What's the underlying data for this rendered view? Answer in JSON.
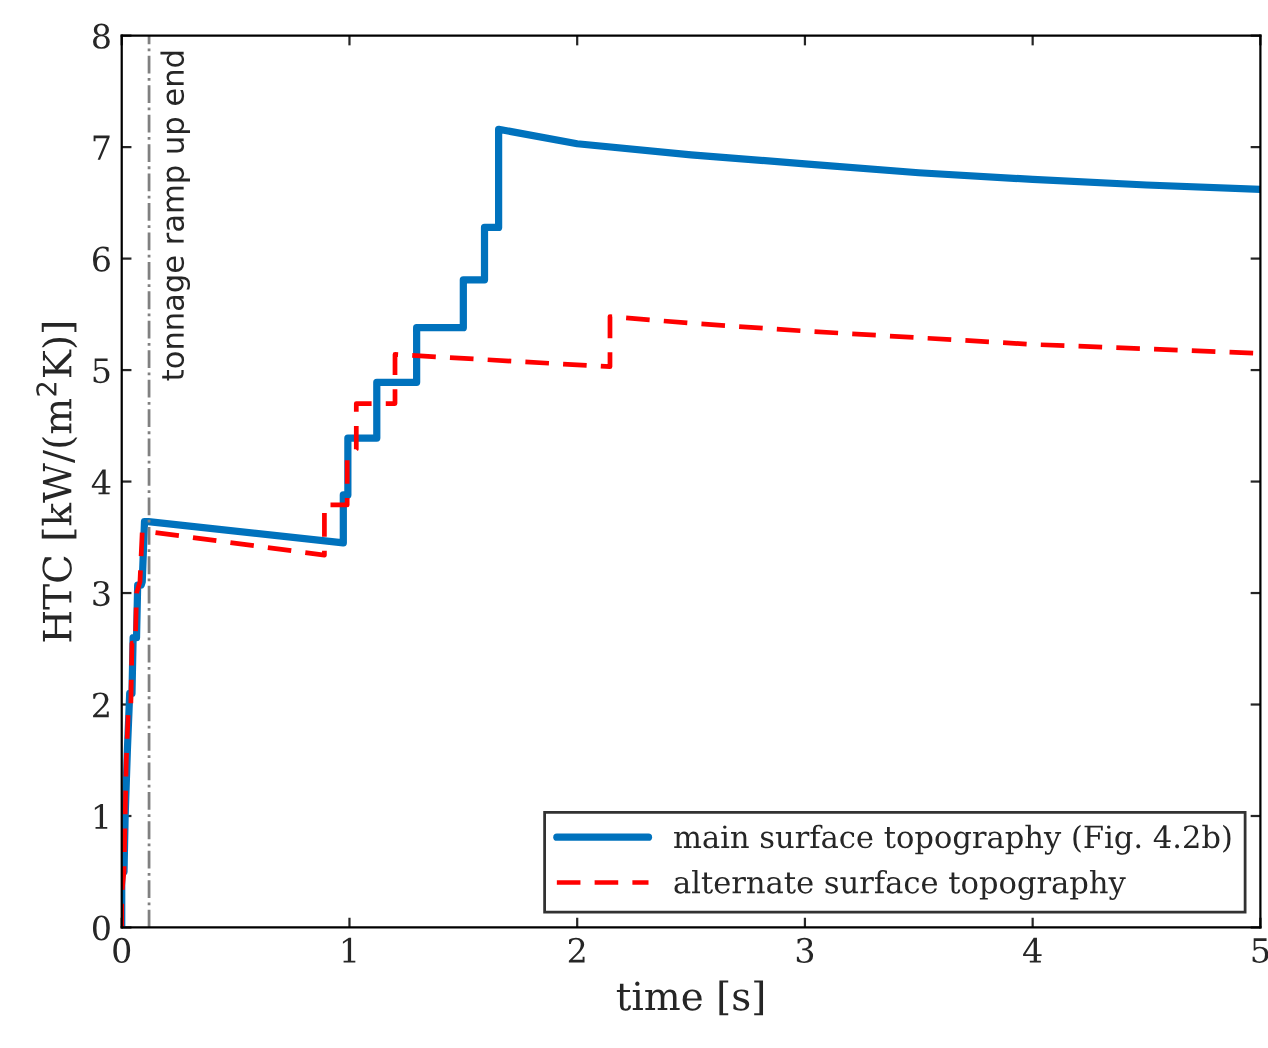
{
  "chart_data": {
    "type": "line",
    "xlabel": "time [s]",
    "ylabel": "HTC [kW/(m$^{2}$K)]",
    "xlim": [
      0,
      5
    ],
    "ylim": [
      0,
      8
    ],
    "xticks": [
      0,
      1,
      2,
      3,
      4,
      5
    ],
    "yticks": [
      0,
      1,
      2,
      3,
      4,
      5,
      6,
      7,
      8
    ],
    "grid": false,
    "legend": "bottom right",
    "ref_lines": [
      {
        "axis": "x",
        "value": 0.12,
        "label": "tonnage ramp up end",
        "color": "#808080",
        "line_style": "dashdot"
      }
    ],
    "series": [
      {
        "name": "main surface topography (Fig. 4.2b)",
        "color": "#0072bd",
        "line_style": "solid",
        "x": [
          0,
          0,
          0.01,
          0.015,
          0.025,
          0.035,
          0.045,
          0.05,
          0.065,
          0.07,
          0.085,
          0.09,
          0.1,
          0.117,
          0.973,
          0.973,
          0.993,
          0.993,
          1.12,
          1.12,
          1.295,
          1.295,
          1.5,
          1.5,
          1.593,
          1.593,
          1.655,
          1.655,
          2,
          2.5,
          3,
          3.5,
          4,
          4.5,
          5
        ],
        "values": [
          0,
          0.5,
          0.5,
          1.0,
          1.6,
          2.1,
          2.1,
          2.6,
          2.6,
          3.07,
          3.07,
          3.1,
          3.64,
          3.64,
          3.45,
          3.88,
          3.88,
          4.39,
          4.39,
          4.89,
          4.89,
          5.38,
          5.38,
          5.81,
          5.81,
          6.28,
          6.28,
          7.16,
          7.03,
          6.93,
          6.85,
          6.77,
          6.71,
          6.66,
          6.62
        ]
      },
      {
        "name": "alternate surface topography",
        "color": "#ff0000",
        "line_style": "dashed",
        "x": [
          0,
          0,
          0.01,
          0.02,
          0.03,
          0.04,
          0.045,
          0.06,
          0.065,
          0.08,
          0.09,
          0.12,
          0.89,
          0.89,
          0.99,
          0.99,
          1.03,
          1.03,
          1.2,
          1.2,
          2.144,
          2.144,
          2.5,
          3,
          3.5,
          4,
          4.5,
          5
        ],
        "values": [
          0,
          0.3,
          0.5,
          1.5,
          2.0,
          2.0,
          2.55,
          2.55,
          3.0,
          3.1,
          3.55,
          3.55,
          3.34,
          3.79,
          3.79,
          4.2,
          4.29,
          4.7,
          4.7,
          5.14,
          5.03,
          5.48,
          5.42,
          5.35,
          5.29,
          5.23,
          5.19,
          5.15
        ]
      }
    ]
  }
}
